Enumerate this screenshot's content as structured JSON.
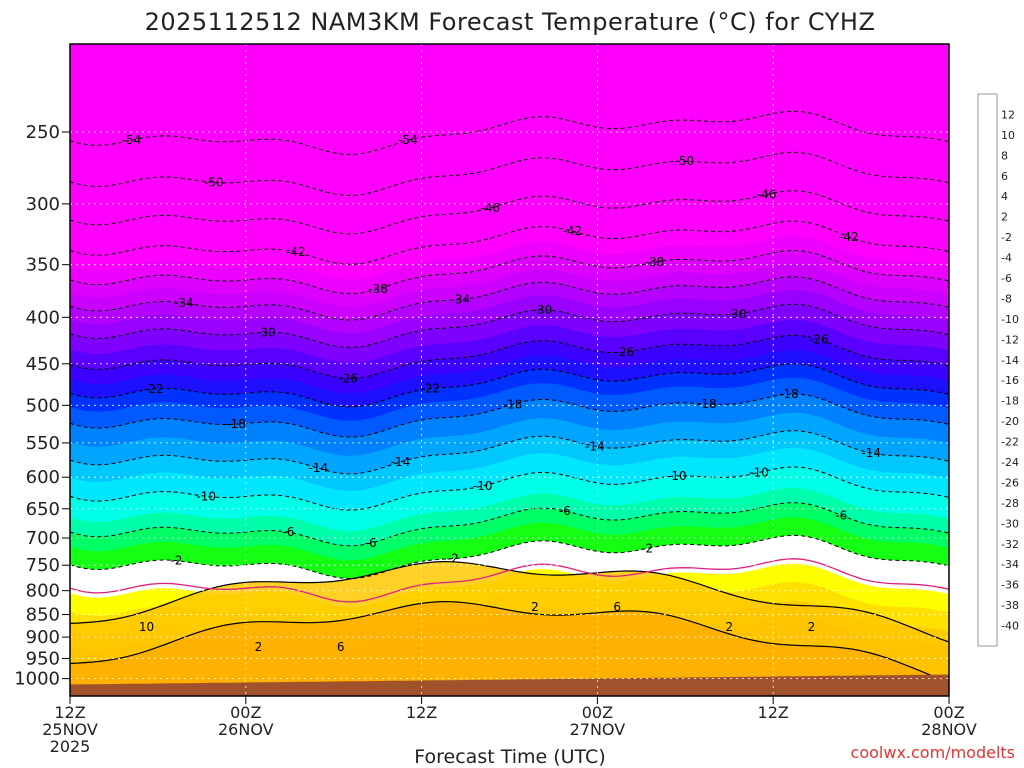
{
  "chart_data": {
    "type": "heatmap",
    "title": "2025112512 NAM3KM Forecast Temperature (°C) for CYHZ",
    "xlabel": "Forecast Time (UTC)",
    "ylabel": "",
    "credit": "coolwx.com/modelts",
    "x_ticks": [
      {
        "hours": 0,
        "l1": "12Z",
        "l2": "25NOV",
        "l3": "2025"
      },
      {
        "hours": 12,
        "l1": "00Z",
        "l2": "26NOV",
        "l3": ""
      },
      {
        "hours": 24,
        "l1": "12Z",
        "l2": "",
        "l3": ""
      },
      {
        "hours": 36,
        "l1": "00Z",
        "l2": "27NOV",
        "l3": ""
      },
      {
        "hours": 48,
        "l1": "12Z",
        "l2": "",
        "l3": ""
      },
      {
        "hours": 60,
        "l1": "00Z",
        "l2": "28NOV",
        "l3": ""
      }
    ],
    "x_range": [
      0,
      60
    ],
    "y_axis": "pressure (hPa), log scale, inverted",
    "y_range": [
      1045,
      200
    ],
    "y_ticks": [
      250,
      300,
      350,
      400,
      450,
      500,
      550,
      600,
      650,
      700,
      750,
      800,
      850,
      900,
      950,
      1000
    ],
    "colorbar": {
      "levels": [
        -42,
        -40,
        -38,
        -36,
        -34,
        -32,
        -30,
        -28,
        -26,
        -24,
        -22,
        -20,
        -18,
        -16,
        -14,
        -12,
        -10,
        -8,
        -6,
        -4,
        -2,
        2,
        4,
        6,
        8,
        10,
        12,
        14
      ],
      "tick_labels": [
        "-40",
        "-38",
        "-36",
        "-34",
        "-32",
        "-30",
        "-28",
        "-26",
        "-24",
        "-22",
        "-20",
        "-18",
        "-16",
        "-14",
        "-12",
        "-10",
        "-8",
        "-6",
        "-4",
        "-2",
        "2",
        "4",
        "6",
        "8",
        "10",
        "12"
      ],
      "colors": [
        "#ff00ff",
        "#ee00ff",
        "#dd00ff",
        "#cc00ff",
        "#b300ff",
        "#9900ff",
        "#8000ff",
        "#5a00ff",
        "#3c00ff",
        "#1e10ff",
        "#0032ff",
        "#005aff",
        "#0082ff",
        "#00a5ff",
        "#00c8ff",
        "#00e6ff",
        "#00ffe6",
        "#00ffaa",
        "#00ff64",
        "#14ff14",
        "#ffffff",
        "#ffff00",
        "#ffe100",
        "#ffc800",
        "#ffaa00",
        "#ff8c00",
        "#ff6e00"
      ]
    },
    "temperature_profile": [
      {
        "p": 250,
        "t": -54
      },
      {
        "p": 300,
        "t": -47
      },
      {
        "p": 350,
        "t": -39
      },
      {
        "p": 400,
        "t": -31
      },
      {
        "p": 450,
        "t": -25
      },
      {
        "p": 500,
        "t": -19
      },
      {
        "p": 550,
        "t": -15
      },
      {
        "p": 600,
        "t": -11
      },
      {
        "p": 650,
        "t": -8
      },
      {
        "p": 700,
        "t": -4
      },
      {
        "p": 750,
        "t": -1
      },
      {
        "p": 800,
        "t": 3
      },
      {
        "p": 850,
        "t": 5
      },
      {
        "p": 900,
        "t": 8
      },
      {
        "p": 950,
        "t": 9
      },
      {
        "p": 1000,
        "t": 9
      }
    ],
    "contour_labels": [
      "-54",
      "-54",
      "-50",
      "-50",
      "-46",
      "-46",
      "-42",
      "-42",
      "-42",
      "-38",
      "-38",
      "-34",
      "-34",
      "-30",
      "-30",
      "-30",
      "-26",
      "-26",
      "-26",
      "-22",
      "-22",
      "-18",
      "-18",
      "-18",
      "-18",
      "-14",
      "-14",
      "-14",
      "-14",
      "-10",
      "-10",
      "-10",
      "-10",
      "-6",
      "-6",
      "-6",
      "-6",
      "-2",
      "-2",
      "-2",
      "2",
      "2",
      "2",
      "2",
      "6",
      "6",
      "10"
    ]
  }
}
